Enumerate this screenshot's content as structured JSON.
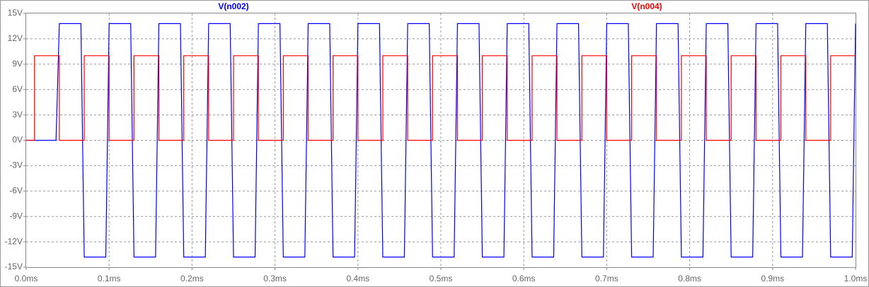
{
  "chart_data": {
    "type": "line",
    "xlim": [
      0,
      1.0
    ],
    "ylim": [
      -15,
      15
    ],
    "xticks": [
      {
        "value": 0,
        "label": "0.0ms"
      },
      {
        "value": 0.1,
        "label": "0.1ms"
      },
      {
        "value": 0.2,
        "label": "0.2ms"
      },
      {
        "value": 0.3,
        "label": "0.3ms"
      },
      {
        "value": 0.4,
        "label": "0.4ms"
      },
      {
        "value": 0.5,
        "label": "0.5ms"
      },
      {
        "value": 0.6,
        "label": "0.6ms"
      },
      {
        "value": 0.7,
        "label": "0.7ms"
      },
      {
        "value": 0.8,
        "label": "0.8ms"
      },
      {
        "value": 0.9,
        "label": "0.9ms"
      },
      {
        "value": 1.0,
        "label": "1.0ms"
      }
    ],
    "yticks": [
      {
        "value": 15,
        "label": "15V"
      },
      {
        "value": 12,
        "label": "12V"
      },
      {
        "value": 9,
        "label": "9V"
      },
      {
        "value": 6,
        "label": "6V"
      },
      {
        "value": 3,
        "label": "3V"
      },
      {
        "value": 0,
        "label": "0V"
      },
      {
        "value": -3,
        "label": "-3V"
      },
      {
        "value": -6,
        "label": "-6V"
      },
      {
        "value": -9,
        "label": "-9V"
      },
      {
        "value": -12,
        "label": "-12V"
      },
      {
        "value": -15,
        "label": "-15V"
      }
    ],
    "grid": true,
    "series": [
      {
        "name": "V(n002)",
        "color": "#0000ff",
        "x": [
          0,
          0.036,
          0.04,
          0.066,
          0.07,
          0.096,
          0.1,
          0.126,
          0.13,
          0.156,
          0.16,
          0.186,
          0.19,
          0.216,
          0.22,
          0.246,
          0.25,
          0.276,
          0.28,
          0.306,
          0.31,
          0.336,
          0.34,
          0.366,
          0.37,
          0.396,
          0.4,
          0.426,
          0.43,
          0.456,
          0.46,
          0.486,
          0.49,
          0.516,
          0.52,
          0.546,
          0.55,
          0.576,
          0.58,
          0.606,
          0.61,
          0.636,
          0.64,
          0.666,
          0.67,
          0.696,
          0.7,
          0.726,
          0.73,
          0.756,
          0.76,
          0.786,
          0.79,
          0.816,
          0.82,
          0.846,
          0.85,
          0.876,
          0.88,
          0.906,
          0.91,
          0.936,
          0.94,
          0.966,
          0.97,
          0.996,
          1.0
        ],
        "values": [
          0,
          0,
          13.8,
          13.8,
          -13.8,
          -13.8,
          13.8,
          13.8,
          -13.8,
          -13.8,
          13.8,
          13.8,
          -13.8,
          -13.8,
          13.8,
          13.8,
          -13.8,
          -13.8,
          13.8,
          13.8,
          -13.8,
          -13.8,
          13.8,
          13.8,
          -13.8,
          -13.8,
          13.8,
          13.8,
          -13.8,
          -13.8,
          13.8,
          13.8,
          -13.8,
          -13.8,
          13.8,
          13.8,
          -13.8,
          -13.8,
          13.8,
          13.8,
          -13.8,
          -13.8,
          13.8,
          13.8,
          -13.8,
          -13.8,
          13.8,
          13.8,
          -13.8,
          -13.8,
          13.8,
          13.8,
          -13.8,
          -13.8,
          13.8,
          13.8,
          -13.8,
          -13.8,
          13.8,
          13.8,
          -13.8,
          -13.8,
          13.8,
          13.8,
          -13.8,
          -13.8,
          13.8
        ]
      },
      {
        "name": "V(n004)",
        "color": "#ff0000",
        "x": [
          0,
          0.01,
          0.01,
          0.04,
          0.04,
          0.07,
          0.07,
          0.1,
          0.1,
          0.13,
          0.13,
          0.16,
          0.16,
          0.19,
          0.19,
          0.22,
          0.22,
          0.25,
          0.25,
          0.28,
          0.28,
          0.31,
          0.31,
          0.34,
          0.34,
          0.37,
          0.37,
          0.4,
          0.4,
          0.43,
          0.43,
          0.46,
          0.46,
          0.49,
          0.49,
          0.52,
          0.52,
          0.55,
          0.55,
          0.58,
          0.58,
          0.61,
          0.61,
          0.64,
          0.64,
          0.67,
          0.67,
          0.7,
          0.7,
          0.73,
          0.73,
          0.76,
          0.76,
          0.79,
          0.79,
          0.82,
          0.82,
          0.85,
          0.85,
          0.88,
          0.88,
          0.91,
          0.91,
          0.94,
          0.94,
          0.97,
          0.97,
          1.0
        ],
        "values": [
          0,
          0,
          10,
          10,
          0,
          0,
          10,
          10,
          0,
          0,
          10,
          10,
          0,
          0,
          10,
          10,
          0,
          0,
          10,
          10,
          0,
          0,
          10,
          10,
          0,
          0,
          10,
          10,
          0,
          0,
          10,
          10,
          0,
          0,
          10,
          10,
          0,
          0,
          10,
          10,
          0,
          0,
          10,
          10,
          0,
          0,
          10,
          10,
          0,
          0,
          10,
          10,
          0,
          0,
          10,
          10,
          0,
          0,
          10,
          10,
          0,
          0,
          10,
          10,
          0,
          0,
          10,
          10
        ]
      }
    ]
  }
}
